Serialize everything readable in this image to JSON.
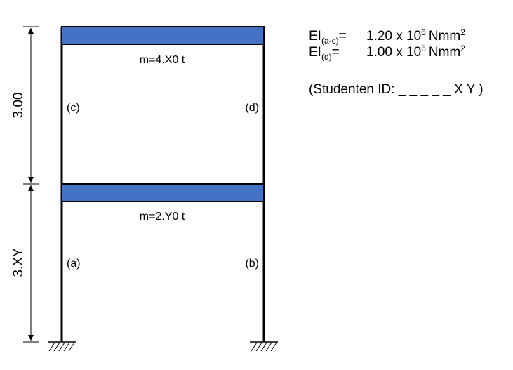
{
  "dimensions": {
    "upper_story": "3.00",
    "lower_story": "3.XY"
  },
  "masses": {
    "upper": "m=4.X0 t",
    "lower": "m=2.Y0 t"
  },
  "column_labels": {
    "a": "(a)",
    "b": "(b)",
    "c": "(c)",
    "d": "(d)"
  },
  "properties": [
    {
      "symbol": "EI",
      "subscript": "(a-c)",
      "equals": "=",
      "value": "1.20 x 10",
      "exponent": "6",
      "unit": "Nmm",
      "unit_exponent": "2"
    },
    {
      "symbol": "EI",
      "subscript": "(d)",
      "equals": "=",
      "value": "1.00 x 10",
      "exponent": "6",
      "unit": "Nmm",
      "unit_exponent": "2"
    }
  ],
  "student_id": "(Studenten ID: _ _ _ _ _ X Y )",
  "colors": {
    "beam_fill": "#4472c4",
    "line": "#000000"
  }
}
